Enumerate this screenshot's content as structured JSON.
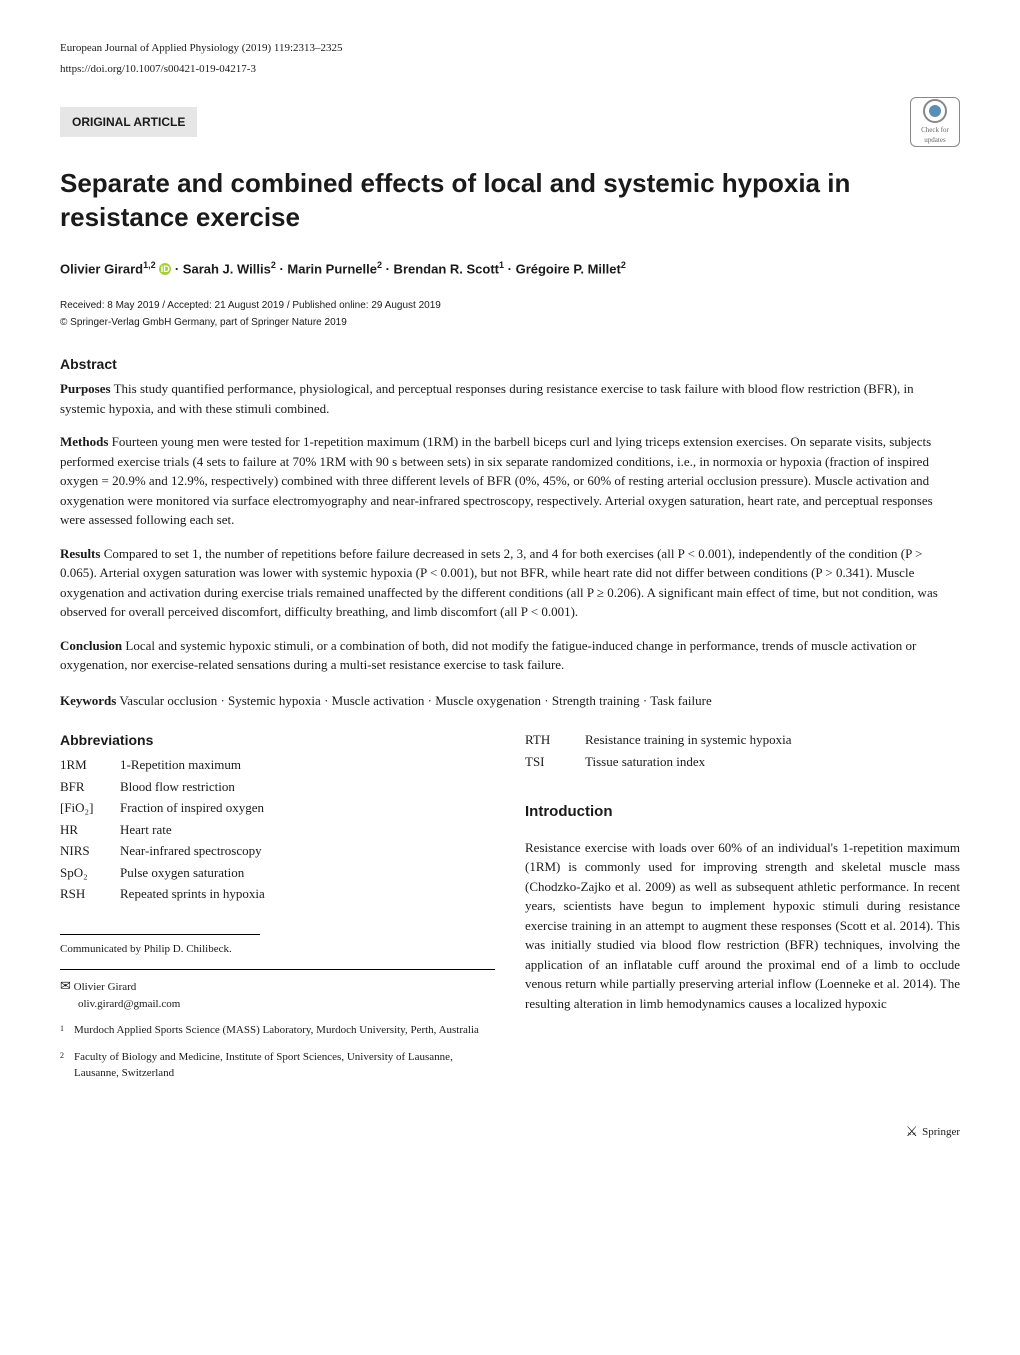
{
  "header": {
    "journal": "European Journal of Applied Physiology (2019) 119:2313–2325",
    "doi": "https://doi.org/10.1007/s00421-019-04217-3",
    "article_type": "ORIGINAL ARTICLE",
    "check_updates_label": "Check for updates"
  },
  "title": "Separate and combined effects of local and systemic hypoxia in resistance exercise",
  "authors_html": "Olivier Girard<sup>1,2</sup> <span class='orcid-icon'>iD</span> · Sarah J. Willis<sup>2</sup> · Marin Purnelle<sup>2</sup> · Brendan R. Scott<sup>1</sup> · Grégoire P. Millet<sup>2</sup>",
  "dates": "Received: 8 May 2019 / Accepted: 21 August 2019 / Published online: 29 August 2019",
  "copyright": "© Springer-Verlag GmbH Germany, part of Springer Nature 2019",
  "abstract_heading": "Abstract",
  "abstract": {
    "purposes_label": "Purposes",
    "purposes_text": " This study quantified performance, physiological, and perceptual responses during resistance exercise to task failure with blood flow restriction (BFR), in systemic hypoxia, and with these stimuli combined.",
    "methods_label": "Methods",
    "methods_text": " Fourteen young men were tested for 1-repetition maximum (1RM) in the barbell biceps curl and lying triceps extension exercises. On separate visits, subjects performed exercise trials (4 sets to failure at 70% 1RM with 90 s between sets) in six separate randomized conditions, i.e., in normoxia or hypoxia (fraction of inspired oxygen = 20.9% and 12.9%, respectively) combined with three different levels of BFR (0%, 45%, or 60% of resting arterial occlusion pressure). Muscle activation and oxygenation were monitored via surface electromyography and near-infrared spectroscopy, respectively. Arterial oxygen saturation, heart rate, and perceptual responses were assessed following each set.",
    "results_label": "Results",
    "results_text": " Compared to set 1, the number of repetitions before failure decreased in sets 2, 3, and 4 for both exercises (all P < 0.001), independently of the condition (P > 0.065). Arterial oxygen saturation was lower with systemic hypoxia (P < 0.001), but not BFR, while heart rate did not differ between conditions (P > 0.341). Muscle oxygenation and activation during exercise trials remained unaffected by the different conditions (all P ≥ 0.206). A significant main effect of time, but not condition, was observed for overall perceived discomfort, difficulty breathing, and limb discomfort (all P < 0.001).",
    "conclusion_label": "Conclusion",
    "conclusion_text": " Local and systemic hypoxic stimuli, or a combination of both, did not modify the fatigue-induced change in performance, trends of muscle activation or oxygenation, nor exercise-related sensations during a multi-set resistance exercise to task failure."
  },
  "keywords_label": "Keywords",
  "keywords_text": " Vascular occlusion · Systemic hypoxia · Muscle activation · Muscle oxygenation · Strength training · Task failure",
  "abbreviations_heading": "Abbreviations",
  "abbreviations_left": [
    {
      "key": "1RM",
      "value": "1-Repetition maximum"
    },
    {
      "key": "BFR",
      "value": "Blood flow restriction"
    },
    {
      "key": "[FiO₂]",
      "value": "Fraction of inspired oxygen"
    },
    {
      "key": "HR",
      "value": "Heart rate"
    },
    {
      "key": "NIRS",
      "value": "Near-infrared spectroscopy"
    },
    {
      "key": "SpO₂",
      "value": "Pulse oxygen saturation"
    },
    {
      "key": "RSH",
      "value": "Repeated sprints in hypoxia"
    }
  ],
  "abbreviations_right": [
    {
      "key": "RTH",
      "value": "Resistance training in systemic hypoxia"
    },
    {
      "key": "TSI",
      "value": "Tissue saturation index"
    }
  ],
  "communicated": "Communicated by Philip D. Chilibeck.",
  "correspondence": {
    "name": "Olivier Girard",
    "email": "oliv.girard@gmail.com"
  },
  "affiliations": [
    {
      "num": "1",
      "text": "Murdoch Applied Sports Science (MASS) Laboratory, Murdoch University, Perth, Australia"
    },
    {
      "num": "2",
      "text": "Faculty of Biology and Medicine, Institute of Sport Sciences, University of Lausanne, Lausanne, Switzerland"
    }
  ],
  "introduction_heading": "Introduction",
  "introduction_text": "Resistance exercise with loads over 60% of an individual's 1-repetition maximum (1RM) is commonly used for improving strength and skeletal muscle mass (Chodzko-Zajko et al. 2009) as well as subsequent athletic performance. In recent years, scientists have begun to implement hypoxic stimuli during resistance exercise training in an attempt to augment these responses (Scott et al. 2014). This was initially studied via blood flow restriction (BFR) techniques, involving the application of an inflatable cuff around the proximal end of a limb to occlude venous return while partially preserving arterial inflow (Loenneke et al. 2014). The resulting alteration in limb hemodynamics causes a localized hypoxic",
  "footer": {
    "publisher": "Springer"
  }
}
